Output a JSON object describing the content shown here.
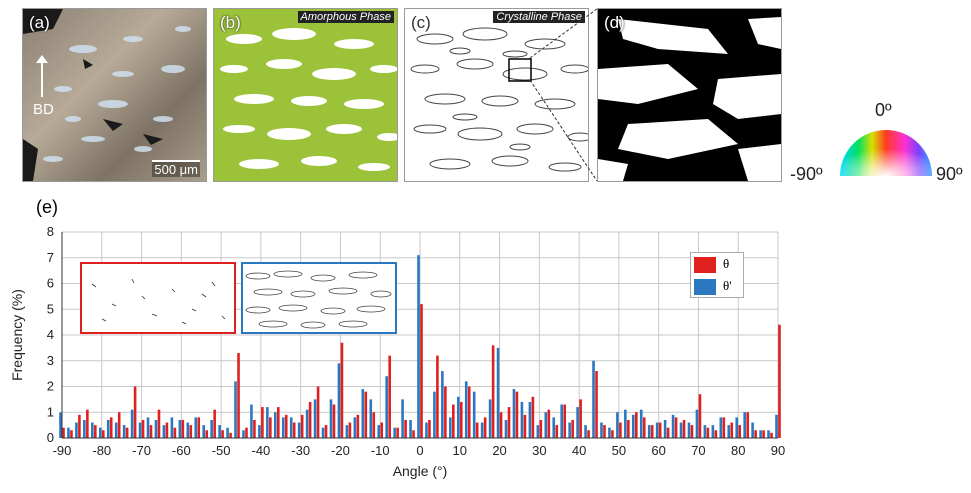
{
  "panels": {
    "a": {
      "label": "(a)",
      "bd_label": "BD",
      "scale_bar": "500 μm"
    },
    "b": {
      "label": "(b)",
      "title": "Amorphous Phase"
    },
    "c": {
      "label": "(c)",
      "title": "Crystalline Phase"
    },
    "d": {
      "label": "(d)"
    },
    "e": {
      "label": "(e)"
    }
  },
  "color_wheel": {
    "top": "0º",
    "left": "-90º",
    "right": "90º"
  },
  "colors": {
    "series_red": "#e0201e",
    "series_blue": "#2b78c0",
    "amorphous_green": "#8cb61e"
  },
  "chart_data": {
    "type": "bar",
    "xlabel": "Angle (°)",
    "ylabel": "Frequency (%)",
    "xlim": [
      -90,
      90
    ],
    "ylim": [
      0,
      8
    ],
    "xticks": [
      -90,
      -80,
      -70,
      -60,
      -50,
      -40,
      -30,
      -20,
      -10,
      0,
      10,
      20,
      30,
      40,
      50,
      60,
      70,
      80,
      90
    ],
    "yticks": [
      0,
      1,
      2,
      3,
      4,
      5,
      6,
      7,
      8
    ],
    "grid": true,
    "legend_position": "top-right",
    "series": [
      {
        "name": "θ",
        "color": "#e0201e",
        "x": [
          -90,
          -88,
          -86,
          -84,
          -82,
          -80,
          -78,
          -76,
          -74,
          -72,
          -70,
          -68,
          -66,
          -64,
          -62,
          -60,
          -58,
          -56,
          -54,
          -52,
          -50,
          -48,
          -46,
          -44,
          -42,
          -40,
          -38,
          -36,
          -34,
          -32,
          -30,
          -28,
          -26,
          -24,
          -22,
          -20,
          -18,
          -16,
          -14,
          -12,
          -10,
          -8,
          -6,
          -4,
          -2,
          0,
          2,
          4,
          6,
          8,
          10,
          12,
          14,
          16,
          18,
          20,
          22,
          24,
          26,
          28,
          30,
          32,
          34,
          36,
          38,
          40,
          42,
          44,
          46,
          48,
          50,
          52,
          54,
          56,
          58,
          60,
          62,
          64,
          66,
          68,
          70,
          72,
          74,
          76,
          78,
          80,
          82,
          84,
          86,
          88,
          90
        ],
        "values": [
          0.4,
          0.3,
          0.9,
          1.1,
          0.5,
          0.3,
          0.8,
          1.0,
          0.4,
          2.0,
          0.7,
          0.5,
          1.1,
          0.6,
          0.4,
          0.7,
          0.5,
          0.8,
          0.3,
          1.1,
          0.3,
          0.2,
          3.3,
          0.4,
          0.7,
          1.2,
          0.8,
          1.2,
          0.9,
          0.6,
          0.9,
          1.4,
          2.0,
          0.5,
          1.3,
          3.7,
          0.6,
          0.9,
          1.8,
          1.0,
          0.6,
          3.2,
          0.4,
          0.7,
          0.3,
          5.2,
          0.7,
          3.2,
          2.0,
          1.3,
          1.4,
          2.0,
          0.6,
          0.8,
          3.6,
          1.0,
          1.2,
          1.8,
          0.9,
          1.6,
          0.7,
          1.1,
          0.5,
          1.3,
          0.7,
          1.5,
          0.3,
          2.6,
          0.5,
          0.3,
          0.6,
          0.7,
          1.0,
          0.8,
          0.5,
          0.6,
          0.4,
          0.8,
          0.7,
          0.5,
          1.7,
          0.4,
          0.3,
          0.8,
          0.6,
          0.5,
          1.0,
          0.3,
          0.3,
          0.2,
          4.4
        ]
      },
      {
        "name": "θ'",
        "color": "#2b78c0",
        "x": [
          -90,
          -88,
          -86,
          -84,
          -82,
          -80,
          -78,
          -76,
          -74,
          -72,
          -70,
          -68,
          -66,
          -64,
          -62,
          -60,
          -58,
          -56,
          -54,
          -52,
          -50,
          -48,
          -46,
          -44,
          -42,
          -40,
          -38,
          -36,
          -34,
          -32,
          -30,
          -28,
          -26,
          -24,
          -22,
          -20,
          -18,
          -16,
          -14,
          -12,
          -10,
          -8,
          -6,
          -4,
          -2,
          0,
          2,
          4,
          6,
          8,
          10,
          12,
          14,
          16,
          18,
          20,
          22,
          24,
          26,
          28,
          30,
          32,
          34,
          36,
          38,
          40,
          42,
          44,
          46,
          48,
          50,
          52,
          54,
          56,
          58,
          60,
          62,
          64,
          66,
          68,
          70,
          72,
          74,
          76,
          78,
          80,
          82,
          84,
          86,
          88,
          90
        ],
        "values": [
          1.0,
          0.4,
          0.6,
          0.7,
          0.6,
          0.4,
          0.7,
          0.6,
          0.5,
          1.1,
          0.6,
          0.8,
          0.7,
          0.5,
          0.8,
          0.7,
          0.6,
          0.8,
          0.5,
          0.7,
          0.5,
          0.4,
          2.2,
          0.3,
          1.3,
          0.5,
          1.2,
          1.0,
          0.8,
          0.8,
          0.6,
          1.1,
          1.5,
          0.4,
          1.5,
          2.9,
          0.5,
          0.8,
          1.9,
          1.5,
          0.5,
          2.4,
          0.4,
          1.5,
          0.7,
          7.1,
          0.6,
          1.8,
          2.6,
          0.8,
          1.6,
          2.2,
          1.8,
          0.6,
          1.5,
          3.5,
          0.7,
          1.9,
          1.4,
          1.4,
          0.5,
          1.0,
          0.8,
          1.3,
          0.6,
          1.2,
          0.5,
          3.0,
          0.6,
          0.4,
          1.0,
          1.1,
          0.9,
          1.1,
          0.5,
          0.6,
          0.7,
          0.9,
          0.6,
          0.6,
          1.1,
          0.5,
          0.5,
          0.8,
          0.5,
          0.8,
          1.0,
          0.6,
          0.3,
          0.3,
          0.9
        ]
      }
    ]
  }
}
